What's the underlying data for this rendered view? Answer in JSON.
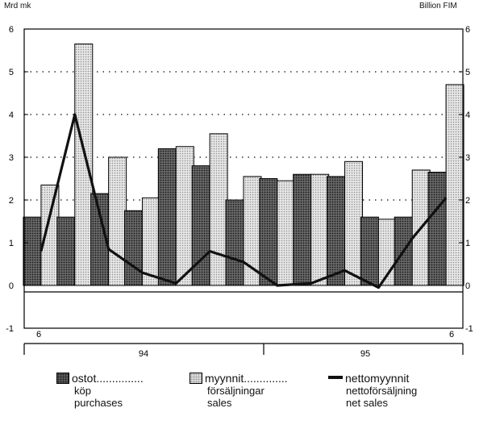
{
  "chart_data": {
    "type": "bar",
    "left_unit": "Mrd mk",
    "right_unit": "Billion FIM",
    "ylim": [
      -1,
      6
    ],
    "yticks": [
      -1,
      0,
      1,
      2,
      3,
      4,
      5,
      6
    ],
    "ytick_labels": [
      "-1",
      "0",
      "1",
      "2",
      "3",
      "4",
      "5",
      "6"
    ],
    "grid": "dotted horizontal",
    "x_tick_labels": [
      "6",
      "6"
    ],
    "year_labels": [
      "94",
      "95"
    ],
    "series": [
      {
        "name": "ostot",
        "values": [
          1.6,
          1.6,
          2.15,
          1.75,
          3.2,
          2.8,
          2.0,
          2.5,
          2.6,
          2.55,
          1.6,
          1.6,
          2.65
        ]
      },
      {
        "name": "myynnit",
        "values": [
          2.35,
          5.65,
          3.0,
          2.05,
          3.25,
          3.55,
          2.55,
          2.45,
          2.6,
          2.9,
          1.55,
          2.7,
          4.7
        ]
      },
      {
        "name": "nettomyynnit",
        "values": [
          0.8,
          4.0,
          0.85,
          0.3,
          0.05,
          0.8,
          0.55,
          0.0,
          0.05,
          0.35,
          -0.05,
          1.1,
          2.05
        ]
      }
    ],
    "legend": [
      {
        "label": "ostot",
        "dots": "...............",
        "sub1": "köp",
        "sub2": "purchases"
      },
      {
        "label": "myynnit",
        "dots": "..............",
        "sub1": "försäljningar",
        "sub2": "sales"
      },
      {
        "label": "nettomyynnit",
        "sub1": "nettoförsäljning",
        "sub2": "net sales"
      }
    ]
  }
}
